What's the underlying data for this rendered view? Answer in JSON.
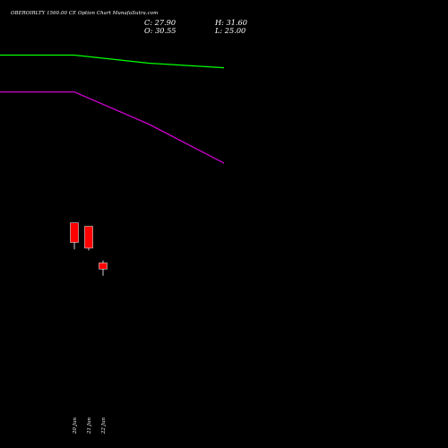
{
  "header": {
    "title": "OBEROIRLTY 1560.00 CE Option Chart MunafaSutra.com",
    "close": "C: 27.90",
    "open": "O: 30.55",
    "high": "H: 31.60",
    "low": "L: 25.00"
  },
  "colors": {
    "background": "#000000",
    "bull": "#00ff00",
    "bear": "#ff0000",
    "ma_fast": "#00ff00",
    "ma_slow": "#cc00cc",
    "text": "#ffffff"
  },
  "chart_data": {
    "type": "candlestick",
    "categories": [
      "20 Jun",
      "21 Jun",
      "22 Jun"
    ],
    "candles": [
      {
        "date": "20 Jun",
        "open": 48.0,
        "high": 48.0,
        "low": 36.5,
        "close": 39.5
      },
      {
        "date": "21 Jun",
        "open": 46.5,
        "high": 46.5,
        "low": 36.0,
        "close": 37.0
      },
      {
        "date": "22 Jun",
        "open": 30.55,
        "high": 31.6,
        "low": 25.0,
        "close": 27.9
      }
    ],
    "overlays": [
      {
        "name": "",
        "color": "#00ff00",
        "points": [
          [
            0,
            121.0
          ],
          [
            1,
            121.0
          ],
          [
            2,
            117.5
          ],
          [
            3,
            115.5
          ]
        ]
      },
      {
        "name": "",
        "color": "#cc00cc",
        "points": [
          [
            0,
            105.0
          ],
          [
            1,
            105.0
          ],
          [
            2,
            91.0
          ],
          [
            3,
            74.0
          ]
        ]
      }
    ],
    "ylim": [
      -50,
      145
    ],
    "grid": false,
    "legend": "none"
  }
}
